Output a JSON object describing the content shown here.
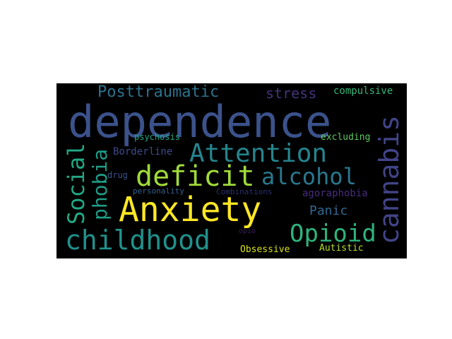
{
  "wordcloud": {
    "words": [
      {
        "key": "dependence",
        "text": "dependence",
        "color": "#3b528b"
      },
      {
        "key": "anxiety",
        "text": "Anxiety",
        "color": "#fde725"
      },
      {
        "key": "childhood",
        "text": "childhood",
        "color": "#21918c"
      },
      {
        "key": "attention",
        "text": "Attention",
        "color": "#25858e"
      },
      {
        "key": "deficit",
        "text": "deficit",
        "color": "#a0da39"
      },
      {
        "key": "alcohol",
        "text": "alcohol",
        "color": "#2a788e"
      },
      {
        "key": "opioid",
        "text": "Opioid",
        "color": "#2eb37c"
      },
      {
        "key": "cannabis",
        "text": "cannabis",
        "color": "#414487"
      },
      {
        "key": "social",
        "text": "Social",
        "color": "#22a884"
      },
      {
        "key": "phobia",
        "text": "phobia",
        "color": "#1f9e89"
      },
      {
        "key": "posttraumatic",
        "text": "Posttraumatic",
        "color": "#2c728e"
      },
      {
        "key": "stress",
        "text": "stress",
        "color": "#46327e"
      },
      {
        "key": "compulsive",
        "text": "compulsive",
        "color": "#35b779"
      },
      {
        "key": "panic",
        "text": "Panic",
        "color": "#31688e"
      },
      {
        "key": "agoraphobia",
        "text": "agoraphobia",
        "color": "#472d7b"
      },
      {
        "key": "borderline",
        "text": "Borderline",
        "color": "#3e4a89"
      },
      {
        "key": "psychosis",
        "text": "psychosis",
        "color": "#21a685"
      },
      {
        "key": "excluding",
        "text": "excluding",
        "color": "#5ec962"
      },
      {
        "key": "drug",
        "text": "drug",
        "color": "#3b528b"
      },
      {
        "key": "personality",
        "text": "personality",
        "color": "#34618d"
      },
      {
        "key": "combinations",
        "text": "Combinations",
        "color": "#2c2f6d"
      },
      {
        "key": "obsessive",
        "text": "Obsessive",
        "color": "#d8e219"
      },
      {
        "key": "autistic",
        "text": "Autistic",
        "color": "#b5de2b"
      },
      {
        "key": "opio",
        "text": "opio",
        "color": "#3a1f5e"
      }
    ]
  }
}
